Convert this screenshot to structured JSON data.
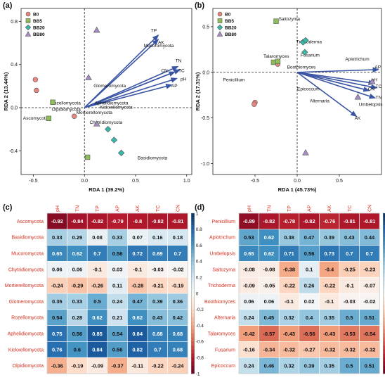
{
  "chart_data": [
    {
      "id": "a",
      "panel_label": "(a)",
      "type": "scatter",
      "xlabel": "RDA 1 (39.2%)",
      "ylabel": "RDA 2 (13.44%)",
      "xlim": [
        -0.62,
        1.05
      ],
      "ylim": [
        -0.62,
        0.92
      ],
      "xticks": [
        -0.5,
        0.0,
        0.5,
        1.0
      ],
      "xtick_labels": [
        "-0.5",
        "0.0",
        "0.5",
        "1.0"
      ],
      "yticks": [
        -0.4,
        0.0,
        0.4,
        0.8
      ],
      "ytick_labels": [
        "-0.4",
        "0.0",
        "0.4",
        "0.8"
      ],
      "legend": [
        {
          "name": "B0",
          "marker": "circle",
          "color": "#e8867d"
        },
        {
          "name": "BB5",
          "marker": "square",
          "color": "#8fbc5a"
        },
        {
          "name": "BB20",
          "marker": "diamond",
          "color": "#36b8a8"
        },
        {
          "name": "BB80",
          "marker": "triangle",
          "color": "#a48bc2"
        }
      ],
      "series": [
        {
          "name": "B0",
          "points": [
            [
              -0.48,
              0.26
            ],
            [
              -0.47,
              0.16
            ],
            [
              -0.1,
              -0.08
            ]
          ]
        },
        {
          "name": "BB5",
          "points": [
            [
              -0.31,
              0.05
            ],
            [
              -0.35,
              -0.1
            ],
            [
              0.03,
              -0.46
            ]
          ]
        },
        {
          "name": "BB20",
          "points": [
            [
              0.23,
              -0.2
            ],
            [
              0.29,
              -0.3
            ],
            [
              0.36,
              -0.42
            ]
          ]
        },
        {
          "name": "BB80",
          "points": [
            [
              0.12,
              0.72
            ],
            [
              0.04,
              0.28
            ],
            [
              0.12,
              -0.15
            ]
          ]
        }
      ],
      "arrows": [
        {
          "name": "TP",
          "x": 0.72,
          "y": 0.67
        },
        {
          "name": "AK",
          "x": 0.72,
          "y": 0.63
        },
        {
          "name": "TN",
          "x": 0.91,
          "y": 0.38
        },
        {
          "name": "CN",
          "x": 0.88,
          "y": 0.33
        },
        {
          "name": "TC",
          "x": 0.93,
          "y": 0.35
        },
        {
          "name": "pH",
          "x": 0.9,
          "y": 0.27
        },
        {
          "name": "AP",
          "x": 0.85,
          "y": 0.21
        }
      ],
      "arrow_labels": [
        {
          "name": "TP",
          "x": 0.65,
          "y": 0.7
        },
        {
          "name": "AK",
          "x": 0.72,
          "y": 0.59
        },
        {
          "name": "TN",
          "x": 0.89,
          "y": 0.42
        },
        {
          "name": "CN",
          "x": 0.75,
          "y": 0.33
        },
        {
          "name": "TC",
          "x": 0.92,
          "y": 0.33
        },
        {
          "name": "pH",
          "x": 0.94,
          "y": 0.25
        },
        {
          "name": "AP",
          "x": 0.85,
          "y": 0.19
        }
      ],
      "species_labels": [
        {
          "name": "Mucoromycota",
          "x": 0.58,
          "y": 0.56
        },
        {
          "name": "Glomeromycota",
          "x": 0.09,
          "y": 0.19
        },
        {
          "name": "Rozellomycota",
          "x": -0.33,
          "y": 0.03
        },
        {
          "name": "Aphelidiomycota",
          "x": 0.1,
          "y": 0.03
        },
        {
          "name": "Kickxellomycota",
          "x": 0.15,
          "y": -0.01
        },
        {
          "name": "Olpidiomycota",
          "x": -0.32,
          "y": -0.03
        },
        {
          "name": "Mortierellomycota",
          "x": -0.08,
          "y": -0.06
        },
        {
          "name": "Ascomycota",
          "x": -0.6,
          "y": -0.11
        },
        {
          "name": "Chytridiomycota",
          "x": 0.05,
          "y": -0.15
        },
        {
          "name": "Basidiomycota",
          "x": 0.52,
          "y": -0.48
        }
      ]
    },
    {
      "id": "b",
      "panel_label": "(b)",
      "type": "scatter",
      "xlabel": "RDA 1 (45.73%)",
      "ylabel": "RDA 2 (17.31%)",
      "xlim": [
        -1.0,
        1.0
      ],
      "ylim": [
        -1.12,
        0.7
      ],
      "xticks": [
        -0.5,
        0.0,
        0.5
      ],
      "xtick_labels": [
        "-0.5",
        "0.0",
        "0.5"
      ],
      "yticks": [
        -1.0,
        -0.5,
        0.0,
        0.5
      ],
      "ytick_labels": [
        "-1.0",
        "-0.5",
        "0.0",
        "0.5"
      ],
      "legend": [
        {
          "name": "B0",
          "marker": "circle",
          "color": "#e8867d"
        },
        {
          "name": "BB5",
          "marker": "square",
          "color": "#8fbc5a"
        },
        {
          "name": "BB20",
          "marker": "diamond",
          "color": "#36b8a8"
        },
        {
          "name": "BB80",
          "marker": "triangle",
          "color": "#a48bc2"
        }
      ],
      "series": [
        {
          "name": "B0",
          "points": [
            [
              -0.5,
              -0.33
            ],
            [
              -0.51,
              -0.35
            ],
            [
              -0.23,
              0.09
            ]
          ]
        },
        {
          "name": "BB5",
          "points": [
            [
              -0.25,
              0.56
            ],
            [
              -0.28,
              0.11
            ],
            [
              -0.23,
              0.12
            ]
          ]
        },
        {
          "name": "BB20",
          "points": [
            [
              0.07,
              0.33
            ],
            [
              0.1,
              0.35
            ],
            [
              0.09,
              0.22
            ]
          ]
        },
        {
          "name": "BB80",
          "points": [
            [
              0.72,
              -0.27
            ],
            [
              0.89,
              -0.1
            ],
            [
              0.1,
              -0.88
            ]
          ]
        }
      ],
      "arrows": [
        {
          "name": "AP",
          "x": 0.96,
          "y": 0.03
        },
        {
          "name": "pH",
          "x": 0.91,
          "y": -0.12
        },
        {
          "name": "TC",
          "x": 0.94,
          "y": -0.17
        },
        {
          "name": "CN",
          "x": 0.85,
          "y": -0.2
        },
        {
          "name": "TN",
          "x": 0.92,
          "y": -0.28
        },
        {
          "name": "AK",
          "x": 0.7,
          "y": -0.48
        }
      ],
      "arrow_labels": [
        {
          "name": "AP",
          "x": 0.92,
          "y": 0.04
        },
        {
          "name": "pH",
          "x": 0.88,
          "y": -0.1
        },
        {
          "name": "TC",
          "x": 0.93,
          "y": -0.17
        },
        {
          "name": "CN",
          "x": 0.84,
          "y": -0.2
        },
        {
          "name": "TN",
          "x": 0.93,
          "y": -0.29
        },
        {
          "name": "AK",
          "x": 0.68,
          "y": -0.52
        }
      ],
      "species_labels": [
        {
          "name": "Saitozyma",
          "x": -0.22,
          "y": 0.57
        },
        {
          "name": "Trichoderma",
          "x": -0.01,
          "y": 0.32
        },
        {
          "name": "Fusarium",
          "x": 0.04,
          "y": 0.17
        },
        {
          "name": "Talaromyces",
          "x": -0.4,
          "y": 0.16
        },
        {
          "name": "Boothiomyces",
          "x": -0.12,
          "y": 0.04
        },
        {
          "name": "Apiotrichum",
          "x": 0.57,
          "y": 0.13
        },
        {
          "name": "Penicillium",
          "x": -0.88,
          "y": -0.1
        },
        {
          "name": "Epicoccum",
          "x": 0.0,
          "y": -0.2
        },
        {
          "name": "Alternaria",
          "x": 0.15,
          "y": -0.33
        },
        {
          "name": "Umbelopsis",
          "x": 0.73,
          "y": -0.37
        }
      ]
    },
    {
      "id": "c",
      "panel_label": "(c)",
      "type": "heatmap",
      "columns": [
        "pH",
        "TN",
        "TP",
        "AP",
        "AK",
        "TC",
        "CN"
      ],
      "rows": [
        "Ascomycota",
        "Basidiomycota",
        "Mucoromycota",
        "Chytridiomycota",
        "Mortierellomycota",
        "Glomeromycota",
        "Rozellomycota",
        "Aphelidiomycota",
        "Kickxellomycota",
        "Olpidiomycota"
      ],
      "values": [
        [
          "-0.92",
          "-0.84",
          "-0.82",
          "-0.79",
          "-0.8",
          "-0.82",
          "-0.81"
        ],
        [
          "0.33",
          "0.29",
          "0.08",
          "0.33",
          "0.07",
          "0.16",
          "0.18"
        ],
        [
          "0.65",
          "0.62",
          "0.7",
          "0.56",
          "0.72",
          "0.69",
          "0.7"
        ],
        [
          "0.06",
          "0.06",
          "-0.1",
          "0.03",
          "-0.1",
          "-0.03",
          "-0.02"
        ],
        [
          "-0.24",
          "-0.29",
          "-0.26",
          "0.11",
          "-0.28",
          "-0.21",
          "-0.19"
        ],
        [
          "0.35",
          "0.33",
          "0.5",
          "0.24",
          "0.47",
          "0.39",
          "0.36"
        ],
        [
          "0.54",
          "0.28",
          "0.62",
          "0.21",
          "0.62",
          "0.43",
          "0.42"
        ],
        [
          "0.75",
          "0.56",
          "0.85",
          "0.54",
          "0.84",
          "0.68",
          "0.68"
        ],
        [
          "0.76",
          "0.6",
          "0.84",
          "0.56",
          "0.82",
          "0.7",
          "0.68"
        ],
        [
          "-0.36",
          "-0.19",
          "-0.09",
          "-0.37",
          "-0.11",
          "-0.22",
          "-0.24"
        ]
      ],
      "scale_ticks": [
        "1",
        "0.8",
        "0.6",
        "0.4",
        "0.2",
        "0",
        "-0.2",
        "-0.4",
        "-0.6",
        "-0.8",
        "-1"
      ]
    },
    {
      "id": "d",
      "panel_label": "(d)",
      "type": "heatmap",
      "columns": [
        "pH",
        "TN",
        "TP",
        "AP",
        "AK",
        "TC",
        "CN"
      ],
      "rows": [
        "Penicillium",
        "Apiotrichum",
        "Umbelopsis",
        "Saitozyma",
        "Trichoderma",
        "Boothiomyces",
        "Alternaria",
        "Talaromyces",
        "Fusarium",
        "Epicoccum"
      ],
      "values": [
        [
          "-0.89",
          "-0.82",
          "-0.78",
          "-0.82",
          "-0.76",
          "-0.81",
          "-0.81"
        ],
        [
          "0.53",
          "0.62",
          "0.38",
          "0.47",
          "0.39",
          "0.43",
          "0.44"
        ],
        [
          "0.65",
          "0.62",
          "0.71",
          "0.56",
          "0.73",
          "0.7",
          "0.7"
        ],
        [
          "-0.08",
          "-0.08",
          "-0.38",
          "0.1",
          "-0.4",
          "-0.25",
          "-0.23"
        ],
        [
          "-0.09",
          "-0.05",
          "-0.22",
          "0.26",
          "-0.22",
          "-0.1",
          "-0.07"
        ],
        [
          "0.06",
          "0.06",
          "-0.1",
          "0.02",
          "-0.1",
          "-0.03",
          "-0.02"
        ],
        [
          "0.24",
          "0.45",
          "0.32",
          "0.4",
          "0.35",
          "0.5",
          "0.51"
        ],
        [
          "-0.42",
          "-0.57",
          "-0.43",
          "-0.56",
          "-0.43",
          "-0.53",
          "-0.54"
        ],
        [
          "-0.16",
          "-0.34",
          "-0.32",
          "-0.27",
          "-0.32",
          "-0.32",
          "-0.32"
        ],
        [
          "0.24",
          "0.46",
          "0.32",
          "0.39",
          "0.35",
          "0.5",
          "0.51"
        ]
      ],
      "scale_ticks": [
        "1",
        "0.8",
        "0.6",
        "0.4",
        "0.2",
        "0",
        "-0.2",
        "-0.4",
        "-0.6",
        "-0.8",
        "-1"
      ]
    }
  ],
  "colors": {
    "arrow": "#3a55a4",
    "heat_neg": "#67001f",
    "heat_pos": "#053061",
    "heat_mid": "#f7f7f7",
    "heat_label": "#d7301f"
  }
}
